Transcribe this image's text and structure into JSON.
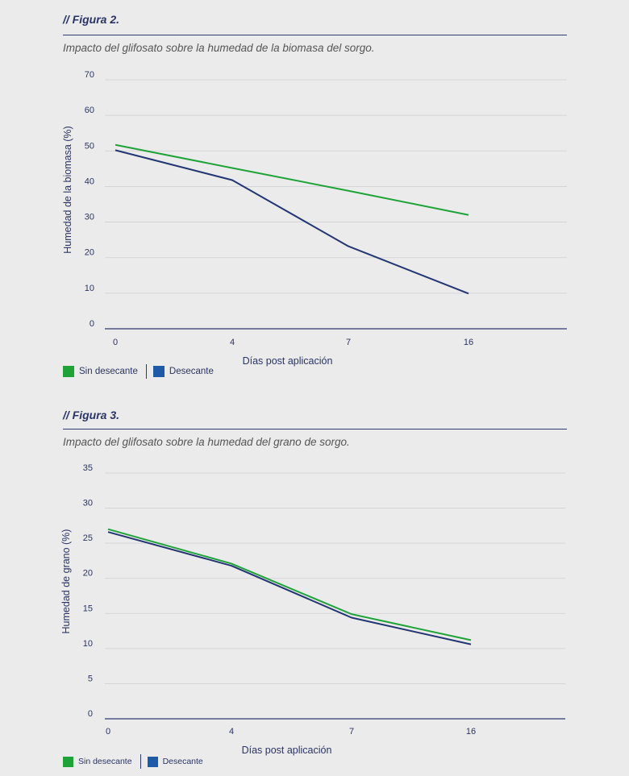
{
  "figures": [
    {
      "label": "// Figura 2.",
      "subtitle": "Impacto del glifosato sobre la humedad de la biomasa del sorgo."
    },
    {
      "label": "// Figura 3.",
      "subtitle": "Impacto del glifosato sobre la humedad del grano de sorgo."
    }
  ],
  "colors": {
    "sin_desecante": "#1fa338",
    "desecante": "#233572",
    "swatch_desecante": "#1e5aa8"
  },
  "chart_data": [
    {
      "type": "line",
      "categories": [
        "0",
        "4",
        "7",
        "16"
      ],
      "xlabel": "Días post aplicación",
      "ylabel": "Humedad de la biomasa (%)",
      "ylim": [
        0,
        70
      ],
      "yticks": [
        "0",
        "10",
        "20",
        "30",
        "40",
        "50",
        "60",
        "70"
      ],
      "grid": true,
      "legend_position": "bottom-left",
      "series": [
        {
          "name": "Sin desecante",
          "values": [
            51.7,
            45.2,
            38.8,
            32.0
          ]
        },
        {
          "name": "Desecante",
          "values": [
            50.2,
            41.8,
            23.2,
            9.9
          ]
        }
      ]
    },
    {
      "type": "line",
      "categories": [
        "0",
        "4",
        "7",
        "16"
      ],
      "xlabel": "Días post aplicación",
      "ylabel": "Humedad de grano (%)",
      "ylim": [
        0,
        35
      ],
      "yticks": [
        "0",
        "5",
        "10",
        "15",
        "20",
        "25",
        "30",
        "35"
      ],
      "grid": true,
      "legend_position": "bottom-left",
      "series": [
        {
          "name": "Sin desecante",
          "values": [
            27.0,
            22.1,
            14.9,
            11.2
          ]
        },
        {
          "name": "Desecante",
          "values": [
            26.6,
            21.8,
            14.4,
            10.6
          ]
        }
      ]
    }
  ]
}
